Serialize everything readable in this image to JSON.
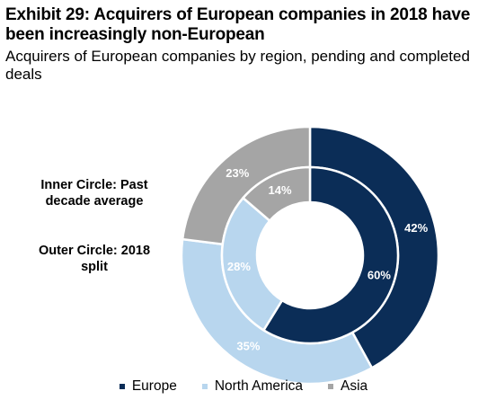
{
  "header": {
    "title": "Exhibit 29: Acquirers of European companies in 2018 have been increasingly non-European",
    "subtitle": "Acquirers of European companies by region, pending and completed deals"
  },
  "notes": {
    "inner": "Inner Circle: Past decade average",
    "outer": "Outer Circle: 2018 split"
  },
  "chart_data": {
    "type": "pie",
    "categories": [
      "Europe",
      "North America",
      "Asia"
    ],
    "colors": [
      "#0b2d57",
      "#b8d6ee",
      "#a5a5a5"
    ],
    "series": [
      {
        "ring": "outer",
        "values": [
          42,
          35,
          23
        ],
        "labels": [
          "42%",
          "35%",
          "23%"
        ]
      },
      {
        "ring": "inner",
        "values": [
          60,
          28,
          14
        ],
        "labels": [
          "60%",
          "28%",
          "14%"
        ]
      }
    ],
    "legend_position": "bottom"
  }
}
